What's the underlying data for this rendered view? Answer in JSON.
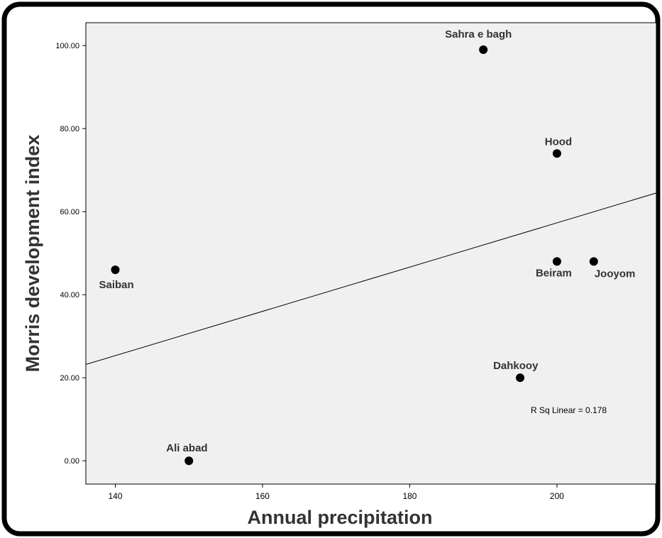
{
  "chart_data": {
    "type": "scatter",
    "title": "",
    "xlabel": "Annual precipitation",
    "ylabel": "Morris development index",
    "xlim": [
      136,
      213.5
    ],
    "ylim": [
      -5.6,
      105.5
    ],
    "x_ticks": [
      140,
      160,
      180,
      200
    ],
    "x_tick_labels": [
      "140",
      "160",
      "180",
      "200"
    ],
    "y_ticks": [
      0,
      20,
      40,
      60,
      80,
      100
    ],
    "y_tick_labels": [
      "0.00",
      "20.00",
      "40.00",
      "60.00",
      "80.00",
      "100.00"
    ],
    "grid": false,
    "points": [
      {
        "label": "Sahra e bagh",
        "x": 190,
        "y": 99
      },
      {
        "label": "Hood",
        "x": 200,
        "y": 74
      },
      {
        "label": "Beiram",
        "x": 200,
        "y": 48
      },
      {
        "label": "Jooyom",
        "x": 205,
        "y": 48
      },
      {
        "label": "Saiban",
        "x": 140,
        "y": 46
      },
      {
        "label": "Dahkooy",
        "x": 195,
        "y": 20
      },
      {
        "label": "Ali abad",
        "x": 150,
        "y": 0
      }
    ],
    "fit_line": {
      "type": "linear",
      "from": {
        "x": 136,
        "y": 23.2
      },
      "to": {
        "x": 213.5,
        "y": 64.5
      }
    },
    "annotations": [
      "R Sq Linear = 0.178"
    ]
  },
  "colors": {
    "plot_background": "#f0f0f0",
    "marker": "#000000",
    "fit_line": "#000000",
    "frame_border": "#000000"
  }
}
